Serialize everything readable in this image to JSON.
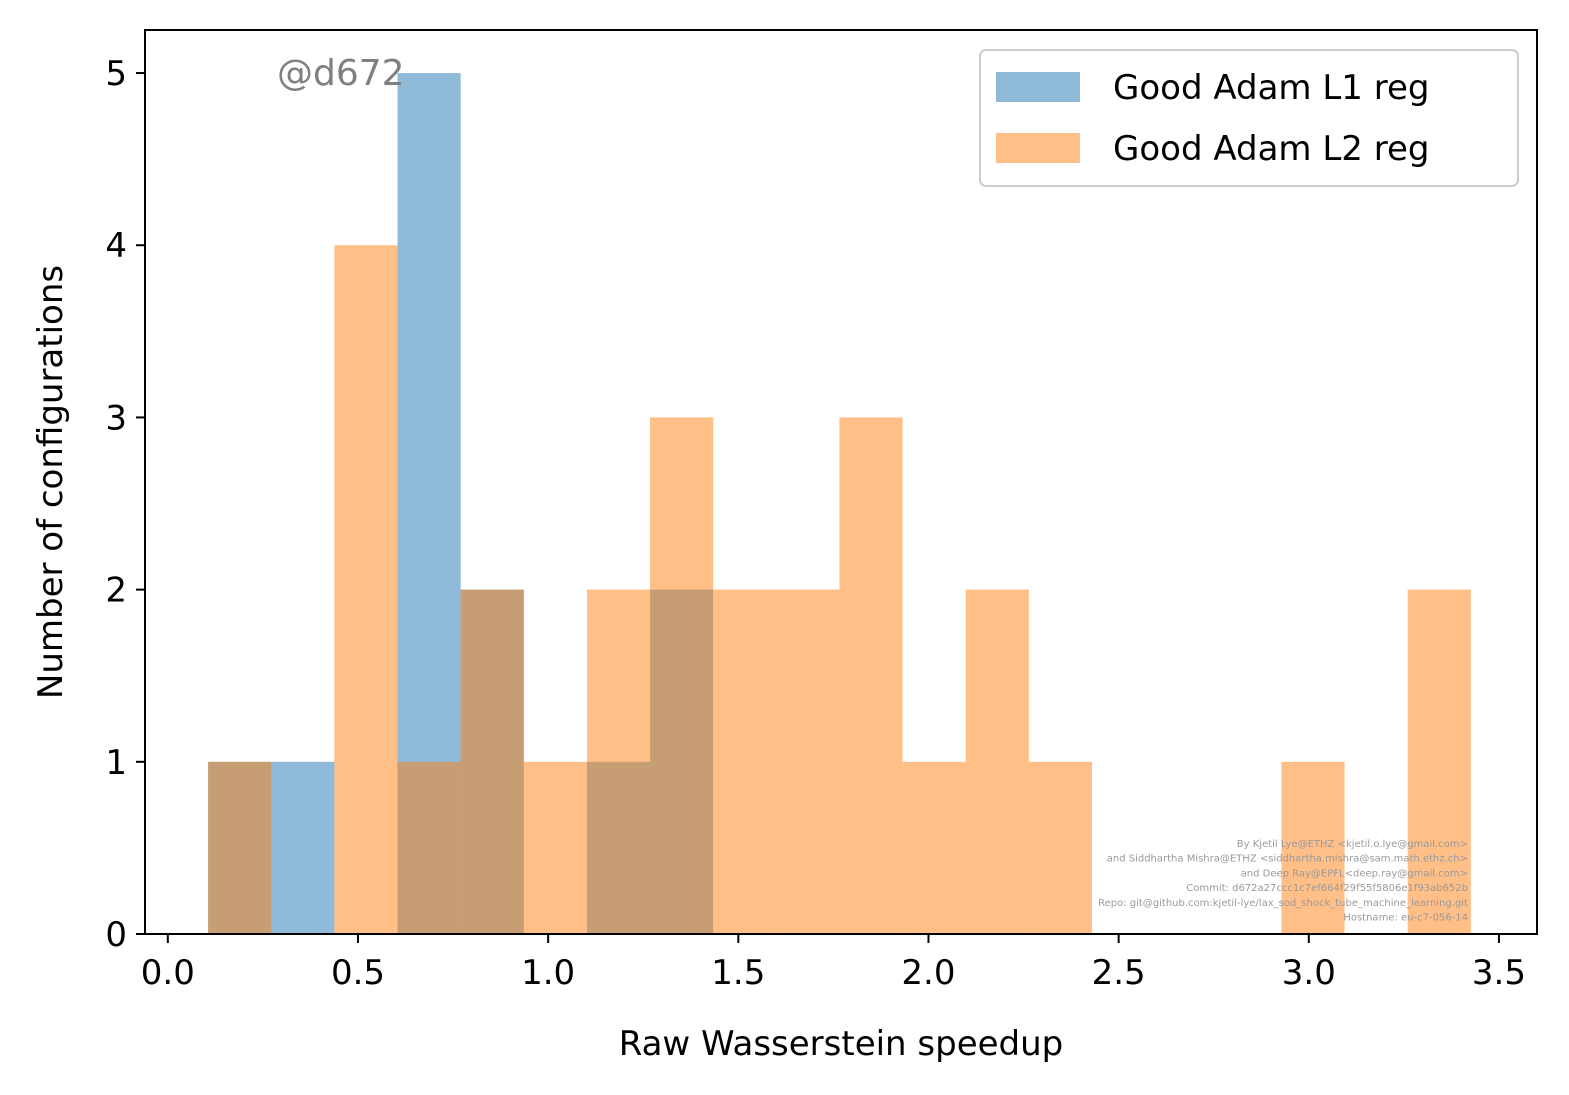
{
  "chart_data": {
    "type": "bar",
    "subtype": "overlapping-histogram",
    "xlabel": "Raw Wasserstein speedup",
    "ylabel": "Number of configurations",
    "xlim": [
      -0.06,
      3.6
    ],
    "ylim": [
      0,
      5.25
    ],
    "xticks": [
      0.0,
      0.5,
      1.0,
      1.5,
      2.0,
      2.5,
      3.0,
      3.5
    ],
    "xtick_labels": [
      "0.0",
      "0.5",
      "1.0",
      "1.5",
      "2.0",
      "2.5",
      "3.0",
      "3.5"
    ],
    "yticks": [
      0,
      1,
      2,
      3,
      4,
      5
    ],
    "ytick_labels": [
      "0",
      "1",
      "2",
      "3",
      "4",
      "5"
    ],
    "grid": false,
    "legend_position": "top-right",
    "series": [
      {
        "name": "Good Adam L1 reg",
        "color": "#1f77b4",
        "opacity": 0.5,
        "bin_edges": [
          0.106,
          0.272,
          0.438,
          0.604,
          0.77,
          0.936,
          1.102,
          1.268,
          1.434
        ],
        "counts": [
          1,
          1,
          0,
          5,
          2,
          0,
          1,
          2
        ]
      },
      {
        "name": "Good Adam L2 reg",
        "color": "#ff7f0e",
        "opacity": 0.5,
        "bin_edges": [
          0.106,
          0.272,
          0.438,
          0.604,
          0.77,
          0.936,
          1.102,
          1.268,
          1.434,
          1.6,
          1.766,
          1.932,
          2.098,
          2.264,
          2.43,
          2.596,
          2.762,
          2.928,
          3.094,
          3.26,
          3.426
        ],
        "counts": [
          1,
          0,
          4,
          1,
          2,
          1,
          2,
          3,
          2,
          2,
          3,
          1,
          2,
          1,
          0,
          0,
          0,
          1,
          0,
          2
        ]
      }
    ],
    "annotations": {
      "watermark": "@d672",
      "credits": [
        "By Kjetil Lye@ETHZ <kjetil.o.lye@gmail.com>",
        "and Siddhartha Mishra@ETHZ <siddhartha.mishra@sam.math.ethz.ch>",
        "and Deep Ray@EPFL<deep.ray@gmail.com>",
        "Commit: d672a27ccc1c7ef664f29f55f5806e1f93ab652b",
        "Repo: git@github.com:kjetil-lye/lax_sod_shock_tube_machine_learning.git",
        "Hostname: eu-c7-056-14"
      ]
    }
  }
}
